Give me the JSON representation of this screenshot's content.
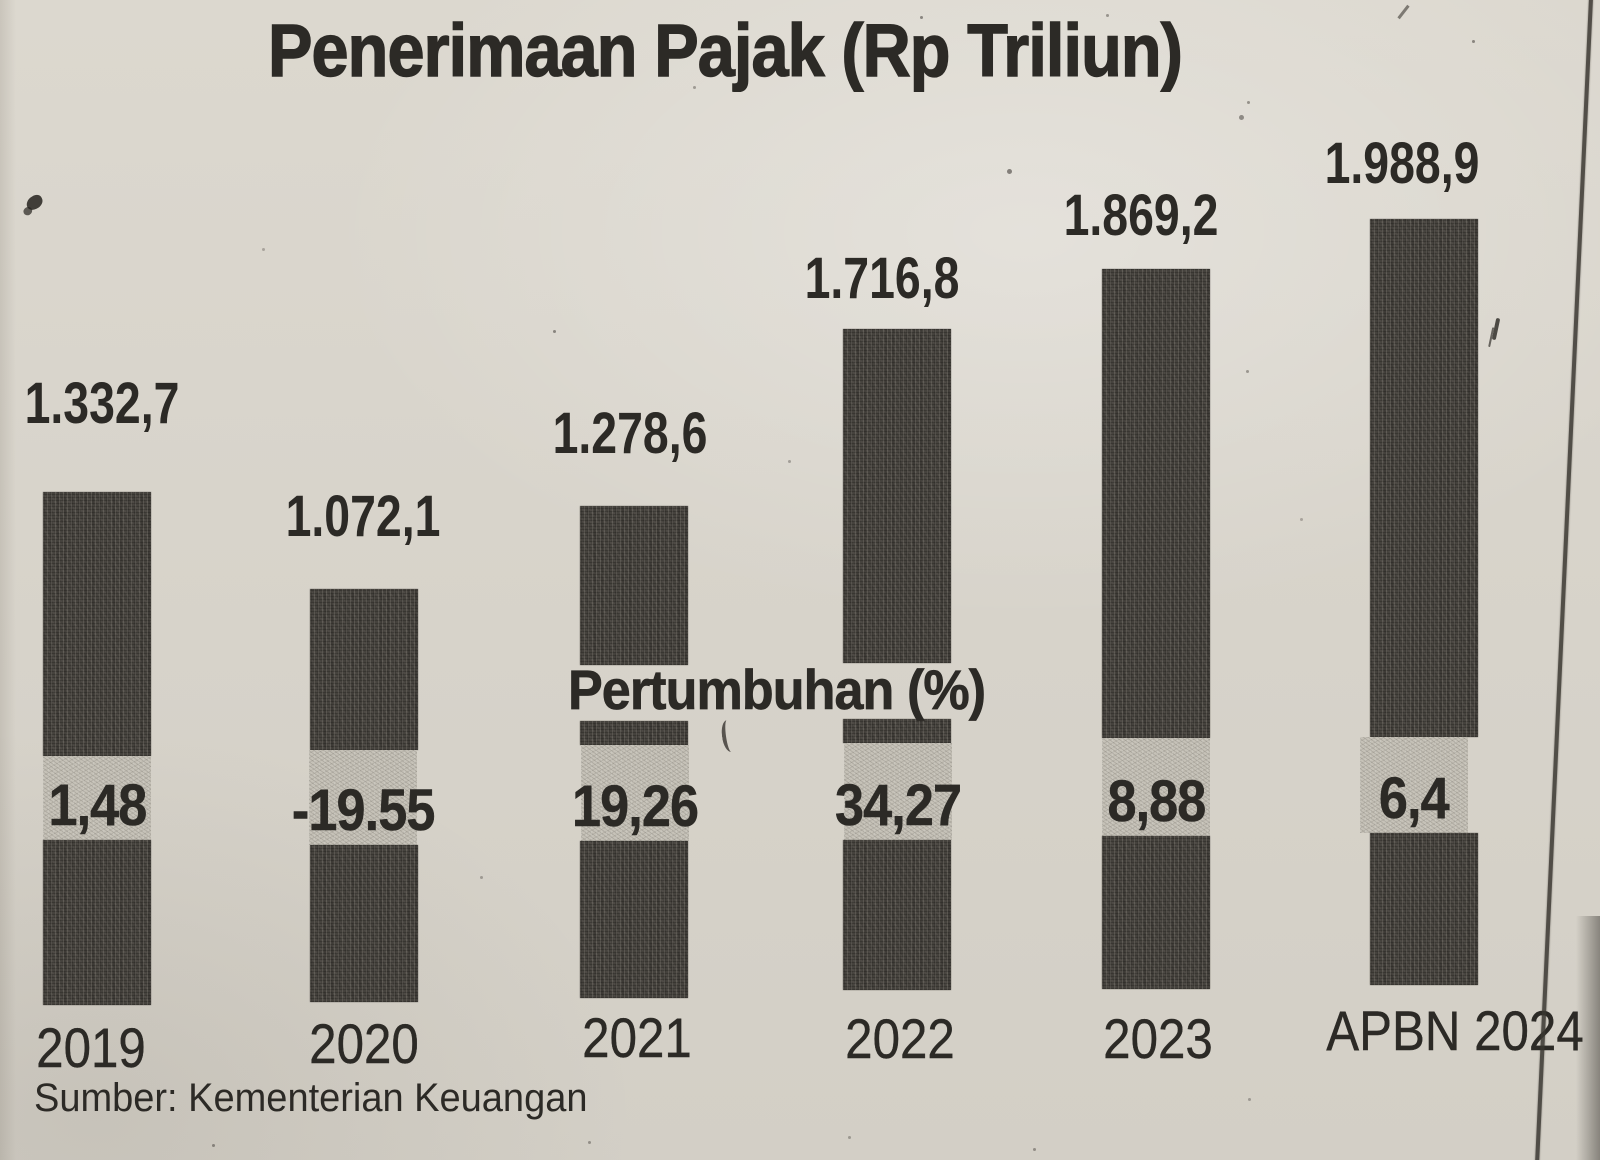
{
  "title": "Penerimaan Pajak (Rp Triliun)",
  "growth_overlay_label": "Pertumbuhan (%)",
  "source_note": "Sumber: Kementerian Keuangan",
  "colors": {
    "paper": "#d7d3ca",
    "ink": "#2c2a26",
    "bar": "#45423d",
    "growth_band": "#c6c2b8"
  },
  "chart_data": {
    "type": "bar",
    "title": "Penerimaan Pajak (Rp Triliun)",
    "categories": [
      "2019",
      "2020",
      "2021",
      "2022",
      "2023",
      "APBN 2024"
    ],
    "series": [
      {
        "name": "Penerimaan Pajak",
        "unit": "Rp triliun",
        "values": [
          1332.7,
          1072.1,
          1278.6,
          1716.8,
          1869.2,
          1988.9
        ],
        "value_labels": [
          "1.332,7",
          "1.072,1",
          "1.278,6",
          "1.716,8",
          "1.869,2",
          "1.988,9"
        ]
      },
      {
        "name": "Pertumbuhan",
        "unit": "%",
        "values": [
          1.48,
          -19.55,
          19.26,
          34.27,
          8.88,
          6.4
        ],
        "value_labels": [
          "1,48",
          "-19.55",
          "19,26",
          "34,27",
          "8,88",
          "6,4"
        ]
      }
    ],
    "ylim": [
      0,
      2100
    ],
    "grid": false,
    "legend_position": "none",
    "annotations": [
      "Pertumbuhan (%)",
      "Sumber: Kementerian Keuangan"
    ],
    "style": "newspaper print; dark gray bars with a light speckled growth-% band overlaid across each bar"
  }
}
